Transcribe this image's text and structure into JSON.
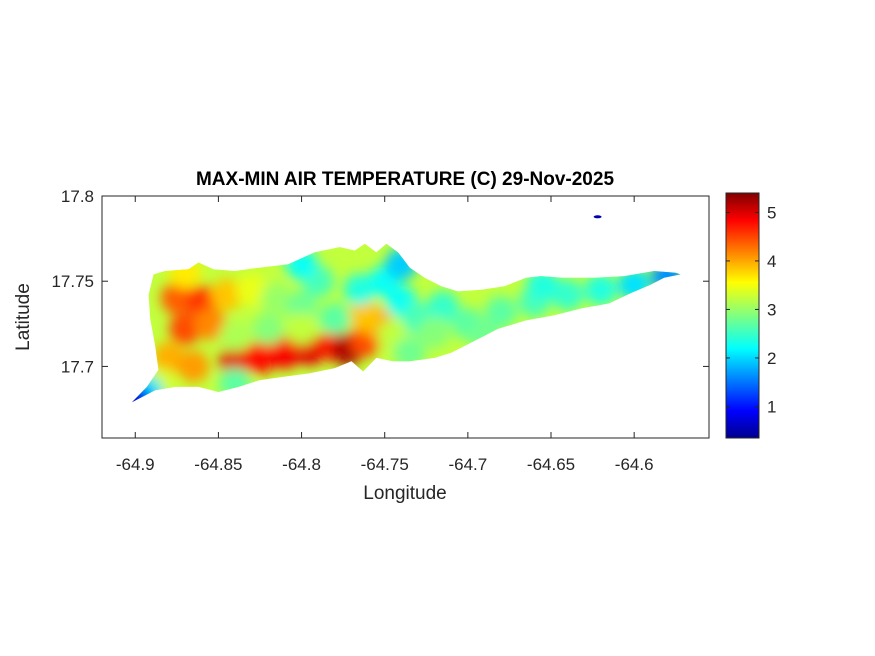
{
  "chart_data": {
    "type": "heatmap",
    "title": "MAX-MIN AIR TEMPERATURE (C) 29-Nov-2025",
    "xlabel": "Longitude",
    "ylabel": "Latitude",
    "xlim": [
      -64.92,
      -64.555
    ],
    "ylim": [
      17.658,
      17.8
    ],
    "xticks": [
      -64.9,
      -64.85,
      -64.8,
      -64.75,
      -64.7,
      -64.65,
      -64.6
    ],
    "xtick_labels": [
      "-64.9",
      "-64.85",
      "-64.8",
      "-64.75",
      "-64.7",
      "-64.65",
      "-64.6"
    ],
    "yticks": [
      17.7,
      17.75,
      17.8
    ],
    "ytick_labels": [
      "17.7",
      "17.75",
      "17.8"
    ],
    "colorbar": {
      "colormap": "jet",
      "range": [
        0.35,
        5.4
      ],
      "ticks": [
        1,
        2,
        3,
        4,
        5
      ],
      "tick_labels": [
        "1",
        "2",
        "3",
        "4",
        "5"
      ]
    },
    "outline": [
      [
        -64.901,
        17.68
      ],
      [
        -64.893,
        17.688
      ],
      [
        -64.886,
        17.698
      ],
      [
        -64.888,
        17.712
      ],
      [
        -64.891,
        17.728
      ],
      [
        -64.892,
        17.742
      ],
      [
        -64.889,
        17.754
      ],
      [
        -64.882,
        17.756
      ],
      [
        -64.868,
        17.757
      ],
      [
        -64.862,
        17.761
      ],
      [
        -64.853,
        17.757
      ],
      [
        -64.84,
        17.756
      ],
      [
        -64.825,
        17.758
      ],
      [
        -64.808,
        17.76
      ],
      [
        -64.792,
        17.767
      ],
      [
        -64.777,
        17.77
      ],
      [
        -64.768,
        17.768
      ],
      [
        -64.762,
        17.772
      ],
      [
        -64.755,
        17.767
      ],
      [
        -64.749,
        17.772
      ],
      [
        -64.742,
        17.767
      ],
      [
        -64.735,
        17.758
      ],
      [
        -64.726,
        17.752
      ],
      [
        -64.716,
        17.747
      ],
      [
        -64.706,
        17.744
      ],
      [
        -64.692,
        17.745
      ],
      [
        -64.678,
        17.747
      ],
      [
        -64.665,
        17.752
      ],
      [
        -64.656,
        17.753
      ],
      [
        -64.643,
        17.752
      ],
      [
        -64.624,
        17.752
      ],
      [
        -64.606,
        17.753
      ],
      [
        -64.588,
        17.756
      ],
      [
        -64.575,
        17.755
      ],
      [
        -64.572,
        17.754
      ],
      [
        -64.582,
        17.752
      ],
      [
        -64.59,
        17.748
      ],
      [
        -64.602,
        17.743
      ],
      [
        -64.615,
        17.737
      ],
      [
        -64.632,
        17.734
      ],
      [
        -64.648,
        17.73
      ],
      [
        -64.665,
        17.727
      ],
      [
        -64.682,
        17.722
      ],
      [
        -64.696,
        17.715
      ],
      [
        -64.71,
        17.708
      ],
      [
        -64.72,
        17.705
      ],
      [
        -64.735,
        17.703
      ],
      [
        -64.745,
        17.703
      ],
      [
        -64.755,
        17.705
      ],
      [
        -64.763,
        17.697
      ],
      [
        -64.77,
        17.703
      ],
      [
        -64.78,
        17.699
      ],
      [
        -64.795,
        17.696
      ],
      [
        -64.81,
        17.694
      ],
      [
        -64.825,
        17.692
      ],
      [
        -64.838,
        17.688
      ],
      [
        -64.85,
        17.685
      ],
      [
        -64.862,
        17.688
      ],
      [
        -64.876,
        17.688
      ],
      [
        -64.888,
        17.686
      ],
      [
        -64.896,
        17.682
      ],
      [
        -64.902,
        17.679
      ]
    ],
    "points": [
      [
        -64.875,
        17.74,
        4.3
      ],
      [
        -64.86,
        17.738,
        4.5
      ],
      [
        -64.87,
        17.722,
        4.4
      ],
      [
        -64.855,
        17.725,
        4.1
      ],
      [
        -64.845,
        17.742,
        3.8
      ],
      [
        -64.83,
        17.745,
        3.4
      ],
      [
        -64.815,
        17.74,
        3.0
      ],
      [
        -64.8,
        17.735,
        2.8
      ],
      [
        -64.79,
        17.75,
        2.6
      ],
      [
        -64.88,
        17.705,
        3.9
      ],
      [
        -64.865,
        17.7,
        4.0
      ],
      [
        -64.84,
        17.703,
        4.9
      ],
      [
        -64.825,
        17.705,
        4.7
      ],
      [
        -64.81,
        17.708,
        4.8
      ],
      [
        -64.795,
        17.71,
        4.9
      ],
      [
        -64.78,
        17.712,
        4.6
      ],
      [
        -64.772,
        17.71,
        5.2
      ],
      [
        -64.762,
        17.715,
        4.4
      ],
      [
        -64.755,
        17.725,
        4.0
      ],
      [
        -64.762,
        17.73,
        3.8
      ],
      [
        -64.745,
        17.718,
        3.2
      ],
      [
        -64.84,
        17.718,
        3.1
      ],
      [
        -64.82,
        17.722,
        2.9
      ],
      [
        -64.8,
        17.722,
        3.2
      ],
      [
        -64.78,
        17.728,
        2.7
      ],
      [
        -64.765,
        17.745,
        2.4
      ],
      [
        -64.75,
        17.75,
        2.3
      ],
      [
        -64.74,
        17.738,
        2.3
      ],
      [
        -64.73,
        17.728,
        2.6
      ],
      [
        -64.715,
        17.735,
        2.5
      ],
      [
        -64.72,
        17.72,
        2.9
      ],
      [
        -64.7,
        17.725,
        2.7
      ],
      [
        -64.68,
        17.732,
        2.7
      ],
      [
        -64.66,
        17.738,
        2.6
      ],
      [
        -64.64,
        17.742,
        2.5
      ],
      [
        -64.62,
        17.745,
        2.4
      ],
      [
        -64.6,
        17.748,
        2.1
      ],
      [
        -64.58,
        17.753,
        1.7
      ],
      [
        -64.74,
        17.76,
        2.0
      ],
      [
        -64.8,
        17.76,
        2.3
      ],
      [
        -64.87,
        17.755,
        3.6
      ],
      [
        -64.885,
        17.69,
        3.3
      ],
      [
        -64.893,
        17.685,
        2.1
      ],
      [
        -64.9,
        17.68,
        0.9
      ],
      [
        -64.84,
        17.69,
        2.7
      ],
      [
        -64.735,
        17.708,
        2.8
      ],
      [
        -64.69,
        17.718,
        2.8
      ],
      [
        -64.655,
        17.748,
        2.4
      ]
    ],
    "extra_patches": [
      {
        "lon": -64.622,
        "lat": 17.7878,
        "value": 0.6
      }
    ]
  }
}
